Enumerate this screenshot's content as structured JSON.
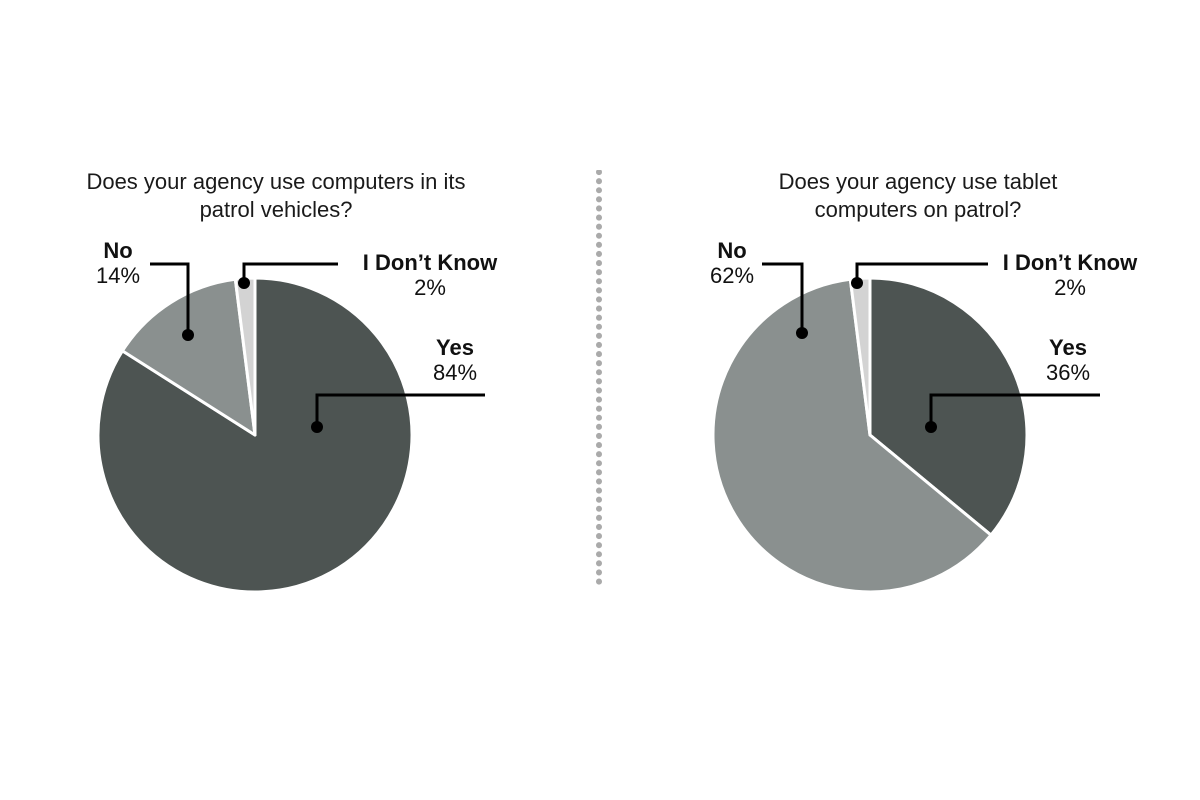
{
  "colors": {
    "yes": "#4d5452",
    "no": "#8a908f",
    "dont_know": "#d3d3d3",
    "divider": "#aaaaaa",
    "callout": "#000000"
  },
  "chart_data": [
    {
      "type": "pie",
      "title_lines": [
        "Does your agency use computers in its",
        "patrol vehicles?"
      ],
      "slices": [
        {
          "label": "Yes",
          "value": 84,
          "display": "84%"
        },
        {
          "label": "No",
          "value": 14,
          "display": "14%"
        },
        {
          "label": "I Don’t Know",
          "value": 2,
          "display": "2%"
        }
      ]
    },
    {
      "type": "pie",
      "title_lines": [
        "Does your agency use tablet",
        "computers on patrol?"
      ],
      "slices": [
        {
          "label": "Yes",
          "value": 36,
          "display": "36%"
        },
        {
          "label": "No",
          "value": 62,
          "display": "62%"
        },
        {
          "label": "I Don’t Know",
          "value": 2,
          "display": "2%"
        }
      ]
    }
  ]
}
